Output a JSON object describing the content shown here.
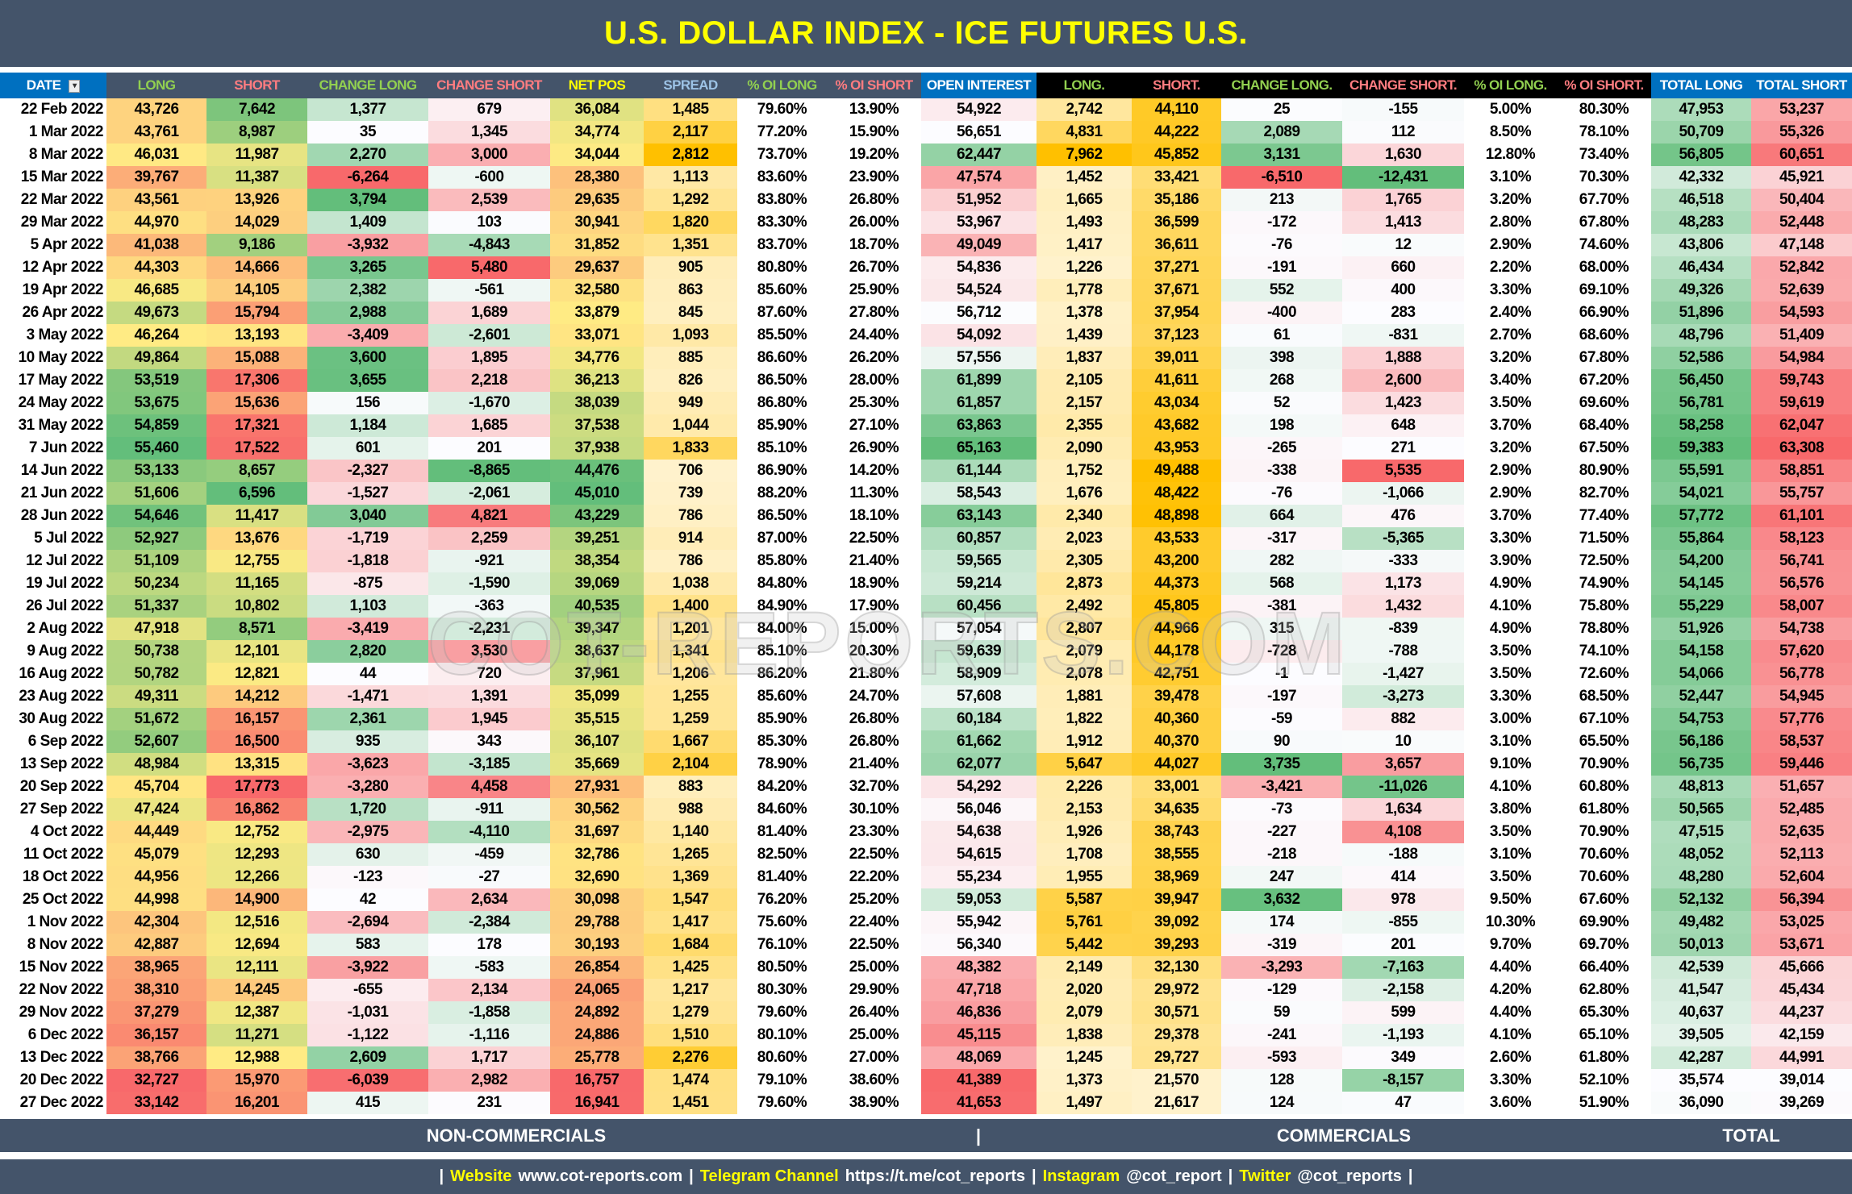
{
  "title": "U.S. DOLLAR INDEX - ICE FUTURES U.S.",
  "colors": {
    "title_text": "#FFFF00",
    "header_blue": "#0070C0",
    "header_slate": "#44546A",
    "header_black": "#000000",
    "long_text": "#92D050",
    "short_text": "#FF7C80",
    "netpos_text": "#FFFF00",
    "spread_text": "#9DC3E6",
    "scale_red": "#F8696B",
    "scale_yellow": "#FFEB84",
    "scale_green": "#63BE7B",
    "scale_white": "#FCFCFF",
    "scale_orange": "#FFC000"
  },
  "columns": [
    {
      "label": "DATE",
      "style": "blue",
      "color": "#FFFFFF",
      "scale": "none",
      "filter_icon": "filter-icon"
    },
    {
      "label": "LONG",
      "style": "slate",
      "color": "#92D050",
      "scale": "red-yellow-green"
    },
    {
      "label": "SHORT",
      "style": "slate",
      "color": "#FF7C80",
      "scale": "green-yellow-red"
    },
    {
      "label": "CHANGE LONG",
      "style": "slate",
      "color": "#92D050",
      "scale": "red-white-green"
    },
    {
      "label": "CHANGE SHORT",
      "style": "slate",
      "color": "#FF7C80",
      "scale": "green-white-red"
    },
    {
      "label": "NET POS",
      "style": "slate",
      "color": "#FFFF00",
      "scale": "red-yellow-green"
    },
    {
      "label": "SPREAD",
      "style": "slate",
      "color": "#9DC3E6",
      "scale": "white-orange"
    },
    {
      "label": "% OI LONG",
      "style": "slate",
      "color": "#92D050",
      "scale": "none"
    },
    {
      "label": "% OI SHORT",
      "style": "slate",
      "color": "#FF7C80",
      "scale": "none"
    },
    {
      "label": "OPEN INTEREST",
      "style": "blue",
      "color": "#FFFFFF",
      "scale": "red-white-green"
    },
    {
      "label": "LONG.",
      "style": "black",
      "color": "#92D050",
      "scale": "white-orange"
    },
    {
      "label": "SHORT.",
      "style": "black",
      "color": "#FF7C80",
      "scale": "white-orange"
    },
    {
      "label": "CHANGE LONG.",
      "style": "black",
      "color": "#92D050",
      "scale": "red-white-green"
    },
    {
      "label": "CHANGE SHORT.",
      "style": "black",
      "color": "#FF7C80",
      "scale": "green-white-red"
    },
    {
      "label": "% OI LONG.",
      "style": "black",
      "color": "#92D050",
      "scale": "none"
    },
    {
      "label": "% OI SHORT.",
      "style": "black",
      "color": "#FF7C80",
      "scale": "none"
    },
    {
      "label": "TOTAL LONG",
      "style": "blue",
      "color": "#FFFFFF",
      "scale": "white-green"
    },
    {
      "label": "TOTAL SHORT",
      "style": "blue",
      "color": "#FFFFFF",
      "scale": "white-red"
    }
  ],
  "rows": [
    [
      "22 Feb 2022",
      "43,726",
      "7,642",
      "1,377",
      "679",
      "36,084",
      "1,485",
      "79.60%",
      "13.90%",
      "54,922",
      "2,742",
      "44,110",
      "25",
      "-155",
      "5.00%",
      "80.30%",
      "47,953",
      "53,237"
    ],
    [
      "1 Mar 2022",
      "43,761",
      "8,987",
      "35",
      "1,345",
      "34,774",
      "2,117",
      "77.20%",
      "15.90%",
      "56,651",
      "4,831",
      "44,222",
      "2,089",
      "112",
      "8.50%",
      "78.10%",
      "50,709",
      "55,326"
    ],
    [
      "8 Mar 2022",
      "46,031",
      "11,987",
      "2,270",
      "3,000",
      "34,044",
      "2,812",
      "73.70%",
      "19.20%",
      "62,447",
      "7,962",
      "45,852",
      "3,131",
      "1,630",
      "12.80%",
      "73.40%",
      "56,805",
      "60,651"
    ],
    [
      "15 Mar 2022",
      "39,767",
      "11,387",
      "-6,264",
      "-600",
      "28,380",
      "1,113",
      "83.60%",
      "23.90%",
      "47,574",
      "1,452",
      "33,421",
      "-6,510",
      "-12,431",
      "3.10%",
      "70.30%",
      "42,332",
      "45,921"
    ],
    [
      "22 Mar 2022",
      "43,561",
      "13,926",
      "3,794",
      "2,539",
      "29,635",
      "1,292",
      "83.80%",
      "26.80%",
      "51,952",
      "1,665",
      "35,186",
      "213",
      "1,765",
      "3.20%",
      "67.70%",
      "46,518",
      "50,404"
    ],
    [
      "29 Mar 2022",
      "44,970",
      "14,029",
      "1,409",
      "103",
      "30,941",
      "1,820",
      "83.30%",
      "26.00%",
      "53,967",
      "1,493",
      "36,599",
      "-172",
      "1,413",
      "2.80%",
      "67.80%",
      "48,283",
      "52,448"
    ],
    [
      "5 Apr 2022",
      "41,038",
      "9,186",
      "-3,932",
      "-4,843",
      "31,852",
      "1,351",
      "83.70%",
      "18.70%",
      "49,049",
      "1,417",
      "36,611",
      "-76",
      "12",
      "2.90%",
      "74.60%",
      "43,806",
      "47,148"
    ],
    [
      "12 Apr 2022",
      "44,303",
      "14,666",
      "3,265",
      "5,480",
      "29,637",
      "905",
      "80.80%",
      "26.70%",
      "54,836",
      "1,226",
      "37,271",
      "-191",
      "660",
      "2.20%",
      "68.00%",
      "46,434",
      "52,842"
    ],
    [
      "19 Apr 2022",
      "46,685",
      "14,105",
      "2,382",
      "-561",
      "32,580",
      "863",
      "85.60%",
      "25.90%",
      "54,524",
      "1,778",
      "37,671",
      "552",
      "400",
      "3.30%",
      "69.10%",
      "49,326",
      "52,639"
    ],
    [
      "26 Apr 2022",
      "49,673",
      "15,794",
      "2,988",
      "1,689",
      "33,879",
      "845",
      "87.60%",
      "27.80%",
      "56,712",
      "1,378",
      "37,954",
      "-400",
      "283",
      "2.40%",
      "66.90%",
      "51,896",
      "54,593"
    ],
    [
      "3 May 2022",
      "46,264",
      "13,193",
      "-3,409",
      "-2,601",
      "33,071",
      "1,093",
      "85.50%",
      "24.40%",
      "54,092",
      "1,439",
      "37,123",
      "61",
      "-831",
      "2.70%",
      "68.60%",
      "48,796",
      "51,409"
    ],
    [
      "10 May 2022",
      "49,864",
      "15,088",
      "3,600",
      "1,895",
      "34,776",
      "885",
      "86.60%",
      "26.20%",
      "57,556",
      "1,837",
      "39,011",
      "398",
      "1,888",
      "3.20%",
      "67.80%",
      "52,586",
      "54,984"
    ],
    [
      "17 May 2022",
      "53,519",
      "17,306",
      "3,655",
      "2,218",
      "36,213",
      "826",
      "86.50%",
      "28.00%",
      "61,899",
      "2,105",
      "41,611",
      "268",
      "2,600",
      "3.40%",
      "67.20%",
      "56,450",
      "59,743"
    ],
    [
      "24 May 2022",
      "53,675",
      "15,636",
      "156",
      "-1,670",
      "38,039",
      "949",
      "86.80%",
      "25.30%",
      "61,857",
      "2,157",
      "43,034",
      "52",
      "1,423",
      "3.50%",
      "69.60%",
      "56,781",
      "59,619"
    ],
    [
      "31 May 2022",
      "54,859",
      "17,321",
      "1,184",
      "1,685",
      "37,538",
      "1,044",
      "85.90%",
      "27.10%",
      "63,863",
      "2,355",
      "43,682",
      "198",
      "648",
      "3.70%",
      "68.40%",
      "58,258",
      "62,047"
    ],
    [
      "7 Jun 2022",
      "55,460",
      "17,522",
      "601",
      "201",
      "37,938",
      "1,833",
      "85.10%",
      "26.90%",
      "65,163",
      "2,090",
      "43,953",
      "-265",
      "271",
      "3.20%",
      "67.50%",
      "59,383",
      "63,308"
    ],
    [
      "14 Jun 2022",
      "53,133",
      "8,657",
      "-2,327",
      "-8,865",
      "44,476",
      "706",
      "86.90%",
      "14.20%",
      "61,144",
      "1,752",
      "49,488",
      "-338",
      "5,535",
      "2.90%",
      "80.90%",
      "55,591",
      "58,851"
    ],
    [
      "21 Jun 2022",
      "51,606",
      "6,596",
      "-1,527",
      "-2,061",
      "45,010",
      "739",
      "88.20%",
      "11.30%",
      "58,543",
      "1,676",
      "48,422",
      "-76",
      "-1,066",
      "2.90%",
      "82.70%",
      "54,021",
      "55,757"
    ],
    [
      "28 Jun 2022",
      "54,646",
      "11,417",
      "3,040",
      "4,821",
      "43,229",
      "786",
      "86.50%",
      "18.10%",
      "63,143",
      "2,340",
      "48,898",
      "664",
      "476",
      "3.70%",
      "77.40%",
      "57,772",
      "61,101"
    ],
    [
      "5 Jul 2022",
      "52,927",
      "13,676",
      "-1,719",
      "2,259",
      "39,251",
      "914",
      "87.00%",
      "22.50%",
      "60,857",
      "2,023",
      "43,533",
      "-317",
      "-5,365",
      "3.30%",
      "71.50%",
      "55,864",
      "58,123"
    ],
    [
      "12 Jul 2022",
      "51,109",
      "12,755",
      "-1,818",
      "-921",
      "38,354",
      "786",
      "85.80%",
      "21.40%",
      "59,565",
      "2,305",
      "43,200",
      "282",
      "-333",
      "3.90%",
      "72.50%",
      "54,200",
      "56,741"
    ],
    [
      "19 Jul 2022",
      "50,234",
      "11,165",
      "-875",
      "-1,590",
      "39,069",
      "1,038",
      "84.80%",
      "18.90%",
      "59,214",
      "2,873",
      "44,373",
      "568",
      "1,173",
      "4.90%",
      "74.90%",
      "54,145",
      "56,576"
    ],
    [
      "26 Jul 2022",
      "51,337",
      "10,802",
      "1,103",
      "-363",
      "40,535",
      "1,400",
      "84.90%",
      "17.90%",
      "60,456",
      "2,492",
      "45,805",
      "-381",
      "1,432",
      "4.10%",
      "75.80%",
      "55,229",
      "58,007"
    ],
    [
      "2 Aug 2022",
      "47,918",
      "8,571",
      "-3,419",
      "-2,231",
      "39,347",
      "1,201",
      "84.00%",
      "15.00%",
      "57,054",
      "2,807",
      "44,966",
      "315",
      "-839",
      "4.90%",
      "78.80%",
      "51,926",
      "54,738"
    ],
    [
      "9 Aug 2022",
      "50,738",
      "12,101",
      "2,820",
      "3,530",
      "38,637",
      "1,341",
      "85.10%",
      "20.30%",
      "59,639",
      "2,079",
      "44,178",
      "-728",
      "-788",
      "3.50%",
      "74.10%",
      "54,158",
      "57,620"
    ],
    [
      "16 Aug 2022",
      "50,782",
      "12,821",
      "44",
      "720",
      "37,961",
      "1,206",
      "86.20%",
      "21.80%",
      "58,909",
      "2,078",
      "42,751",
      "-1",
      "-1,427",
      "3.50%",
      "72.60%",
      "54,066",
      "56,778"
    ],
    [
      "23 Aug 2022",
      "49,311",
      "14,212",
      "-1,471",
      "1,391",
      "35,099",
      "1,255",
      "85.60%",
      "24.70%",
      "57,608",
      "1,881",
      "39,478",
      "-197",
      "-3,273",
      "3.30%",
      "68.50%",
      "52,447",
      "54,945"
    ],
    [
      "30 Aug 2022",
      "51,672",
      "16,157",
      "2,361",
      "1,945",
      "35,515",
      "1,259",
      "85.90%",
      "26.80%",
      "60,184",
      "1,822",
      "40,360",
      "-59",
      "882",
      "3.00%",
      "67.10%",
      "54,753",
      "57,776"
    ],
    [
      "6 Sep 2022",
      "52,607",
      "16,500",
      "935",
      "343",
      "36,107",
      "1,667",
      "85.30%",
      "26.80%",
      "61,662",
      "1,912",
      "40,370",
      "90",
      "10",
      "3.10%",
      "65.50%",
      "56,186",
      "58,537"
    ],
    [
      "13 Sep 2022",
      "48,984",
      "13,315",
      "-3,623",
      "-3,185",
      "35,669",
      "2,104",
      "78.90%",
      "21.40%",
      "62,077",
      "5,647",
      "44,027",
      "3,735",
      "3,657",
      "9.10%",
      "70.90%",
      "56,735",
      "59,446"
    ],
    [
      "20 Sep 2022",
      "45,704",
      "17,773",
      "-3,280",
      "4,458",
      "27,931",
      "883",
      "84.20%",
      "32.70%",
      "54,292",
      "2,226",
      "33,001",
      "-3,421",
      "-11,026",
      "4.10%",
      "60.80%",
      "48,813",
      "51,657"
    ],
    [
      "27 Sep 2022",
      "47,424",
      "16,862",
      "1,720",
      "-911",
      "30,562",
      "988",
      "84.60%",
      "30.10%",
      "56,046",
      "2,153",
      "34,635",
      "-73",
      "1,634",
      "3.80%",
      "61.80%",
      "50,565",
      "52,485"
    ],
    [
      "4 Oct 2022",
      "44,449",
      "12,752",
      "-2,975",
      "-4,110",
      "31,697",
      "1,140",
      "81.40%",
      "23.30%",
      "54,638",
      "1,926",
      "38,743",
      "-227",
      "4,108",
      "3.50%",
      "70.90%",
      "47,515",
      "52,635"
    ],
    [
      "11 Oct 2022",
      "45,079",
      "12,293",
      "630",
      "-459",
      "32,786",
      "1,265",
      "82.50%",
      "22.50%",
      "54,615",
      "1,708",
      "38,555",
      "-218",
      "-188",
      "3.10%",
      "70.60%",
      "48,052",
      "52,113"
    ],
    [
      "18 Oct 2022",
      "44,956",
      "12,266",
      "-123",
      "-27",
      "32,690",
      "1,369",
      "81.40%",
      "22.20%",
      "55,234",
      "1,955",
      "38,969",
      "247",
      "414",
      "3.50%",
      "70.60%",
      "48,280",
      "52,604"
    ],
    [
      "25 Oct 2022",
      "44,998",
      "14,900",
      "42",
      "2,634",
      "30,098",
      "1,547",
      "76.20%",
      "25.20%",
      "59,053",
      "5,587",
      "39,947",
      "3,632",
      "978",
      "9.50%",
      "67.60%",
      "52,132",
      "56,394"
    ],
    [
      "1 Nov 2022",
      "42,304",
      "12,516",
      "-2,694",
      "-2,384",
      "29,788",
      "1,417",
      "75.60%",
      "22.40%",
      "55,942",
      "5,761",
      "39,092",
      "174",
      "-855",
      "10.30%",
      "69.90%",
      "49,482",
      "53,025"
    ],
    [
      "8 Nov 2022",
      "42,887",
      "12,694",
      "583",
      "178",
      "30,193",
      "1,684",
      "76.10%",
      "22.50%",
      "56,340",
      "5,442",
      "39,293",
      "-319",
      "201",
      "9.70%",
      "69.70%",
      "50,013",
      "53,671"
    ],
    [
      "15 Nov 2022",
      "38,965",
      "12,111",
      "-3,922",
      "-583",
      "26,854",
      "1,425",
      "80.50%",
      "25.00%",
      "48,382",
      "2,149",
      "32,130",
      "-3,293",
      "-7,163",
      "4.40%",
      "66.40%",
      "42,539",
      "45,666"
    ],
    [
      "22 Nov 2022",
      "38,310",
      "14,245",
      "-655",
      "2,134",
      "24,065",
      "1,217",
      "80.30%",
      "29.90%",
      "47,718",
      "2,020",
      "29,972",
      "-129",
      "-2,158",
      "4.20%",
      "62.80%",
      "41,547",
      "45,434"
    ],
    [
      "29 Nov 2022",
      "37,279",
      "12,387",
      "-1,031",
      "-1,858",
      "24,892",
      "1,279",
      "79.60%",
      "26.40%",
      "46,836",
      "2,079",
      "30,571",
      "59",
      "599",
      "4.40%",
      "65.30%",
      "40,637",
      "44,237"
    ],
    [
      "6 Dec 2022",
      "36,157",
      "11,271",
      "-1,122",
      "-1,116",
      "24,886",
      "1,510",
      "80.10%",
      "25.00%",
      "45,115",
      "1,838",
      "29,378",
      "-241",
      "-1,193",
      "4.10%",
      "65.10%",
      "39,505",
      "42,159"
    ],
    [
      "13 Dec 2022",
      "38,766",
      "12,988",
      "2,609",
      "1,717",
      "25,778",
      "2,276",
      "80.60%",
      "27.00%",
      "48,069",
      "1,245",
      "29,727",
      "-593",
      "349",
      "2.60%",
      "61.80%",
      "42,287",
      "44,991"
    ],
    [
      "20 Dec 2022",
      "32,727",
      "15,970",
      "-6,039",
      "2,982",
      "16,757",
      "1,474",
      "79.10%",
      "38.60%",
      "41,389",
      "1,373",
      "21,570",
      "128",
      "-8,157",
      "3.30%",
      "52.10%",
      "35,574",
      "39,014"
    ],
    [
      "27 Dec 2022",
      "33,142",
      "16,201",
      "415",
      "231",
      "16,941",
      "1,451",
      "79.60%",
      "38.90%",
      "41,653",
      "1,497",
      "21,617",
      "124",
      "47",
      "3.60%",
      "51.90%",
      "36,090",
      "39,269"
    ]
  ],
  "sections": {
    "non_commercials": "NON-COMMERCIALS",
    "divider": "|",
    "commercials": "COMMERCIALS",
    "total": "TOTAL"
  },
  "footer": {
    "sep": "|",
    "website_label": "Website",
    "website": "www.cot-reports.com",
    "telegram_label": "Telegram Channel",
    "telegram": "https://t.me/cot_reports",
    "instagram_label": "Instagram",
    "instagram": "@cot_report",
    "twitter_label": "Twitter",
    "twitter": "@cot_reports"
  },
  "watermark": "COT-REPORTS.COM"
}
